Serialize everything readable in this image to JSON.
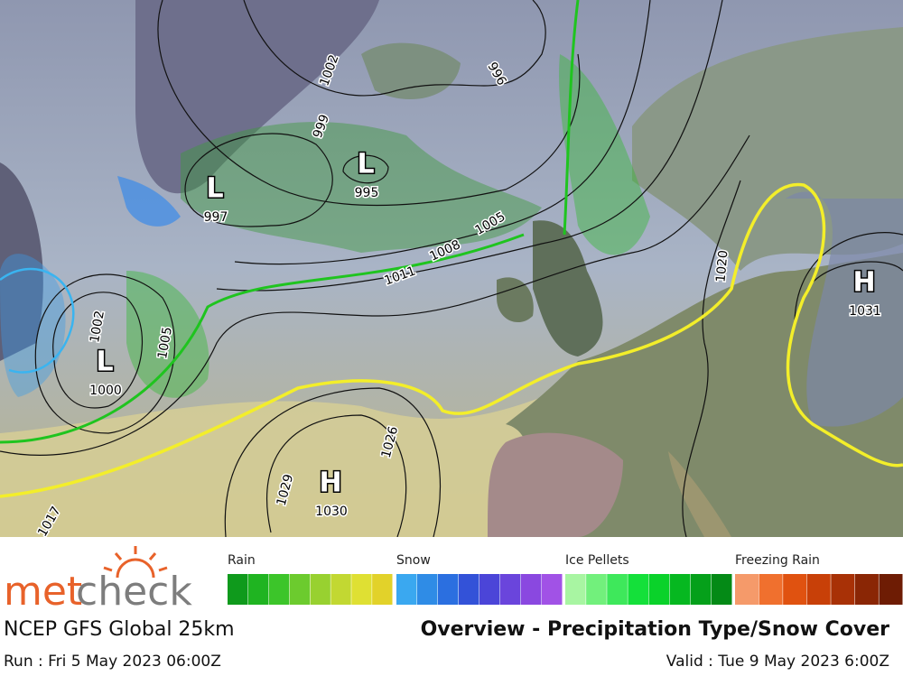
{
  "map": {
    "pressure_centers": [
      {
        "symbol": "L",
        "value": 997
      },
      {
        "symbol": "L",
        "value": 995
      },
      {
        "symbol": "L",
        "value": 1000
      },
      {
        "symbol": "H",
        "value": 1030
      },
      {
        "symbol": "H",
        "value": 1031
      }
    ],
    "isobar_labels": [
      1002,
      999,
      996,
      1005,
      1008,
      1011,
      1002,
      1005,
      1026,
      1029,
      1017,
      1020
    ]
  },
  "legend": [
    {
      "label": "Rain",
      "colors": [
        "#0f9a1c",
        "#1fb421",
        "#3cc52a",
        "#6ccb2e",
        "#98d130",
        "#c2d832",
        "#dfe033",
        "#e2d22a"
      ]
    },
    {
      "label": "Snow",
      "colors": [
        "#3aa8f0",
        "#2f8ce6",
        "#2b6fe0",
        "#3352d8",
        "#4b45d8",
        "#6a45dc",
        "#8a48e0",
        "#a152e6"
      ]
    },
    {
      "label": "Ice Pellets",
      "colors": [
        "#a8f5a2",
        "#72f07c",
        "#3ee85b",
        "#14e03a",
        "#0ad22a",
        "#06b820",
        "#05a01a",
        "#048a16"
      ]
    },
    {
      "label": "Freezing Rain",
      "colors": [
        "#f59a6a",
        "#f0702e",
        "#e05210",
        "#c84008",
        "#a83106",
        "#8a2605",
        "#6e1c04"
      ]
    }
  ],
  "footer": {
    "logo_met": "met",
    "logo_check": "check",
    "model": "NCEP GFS Global 25km",
    "title": "Overview - Precipitation Type/Snow Cover",
    "run": "Run : Fri 5 May 2023 06:00Z",
    "valid": "Valid : Tue 9 May 2023 6:00Z"
  }
}
